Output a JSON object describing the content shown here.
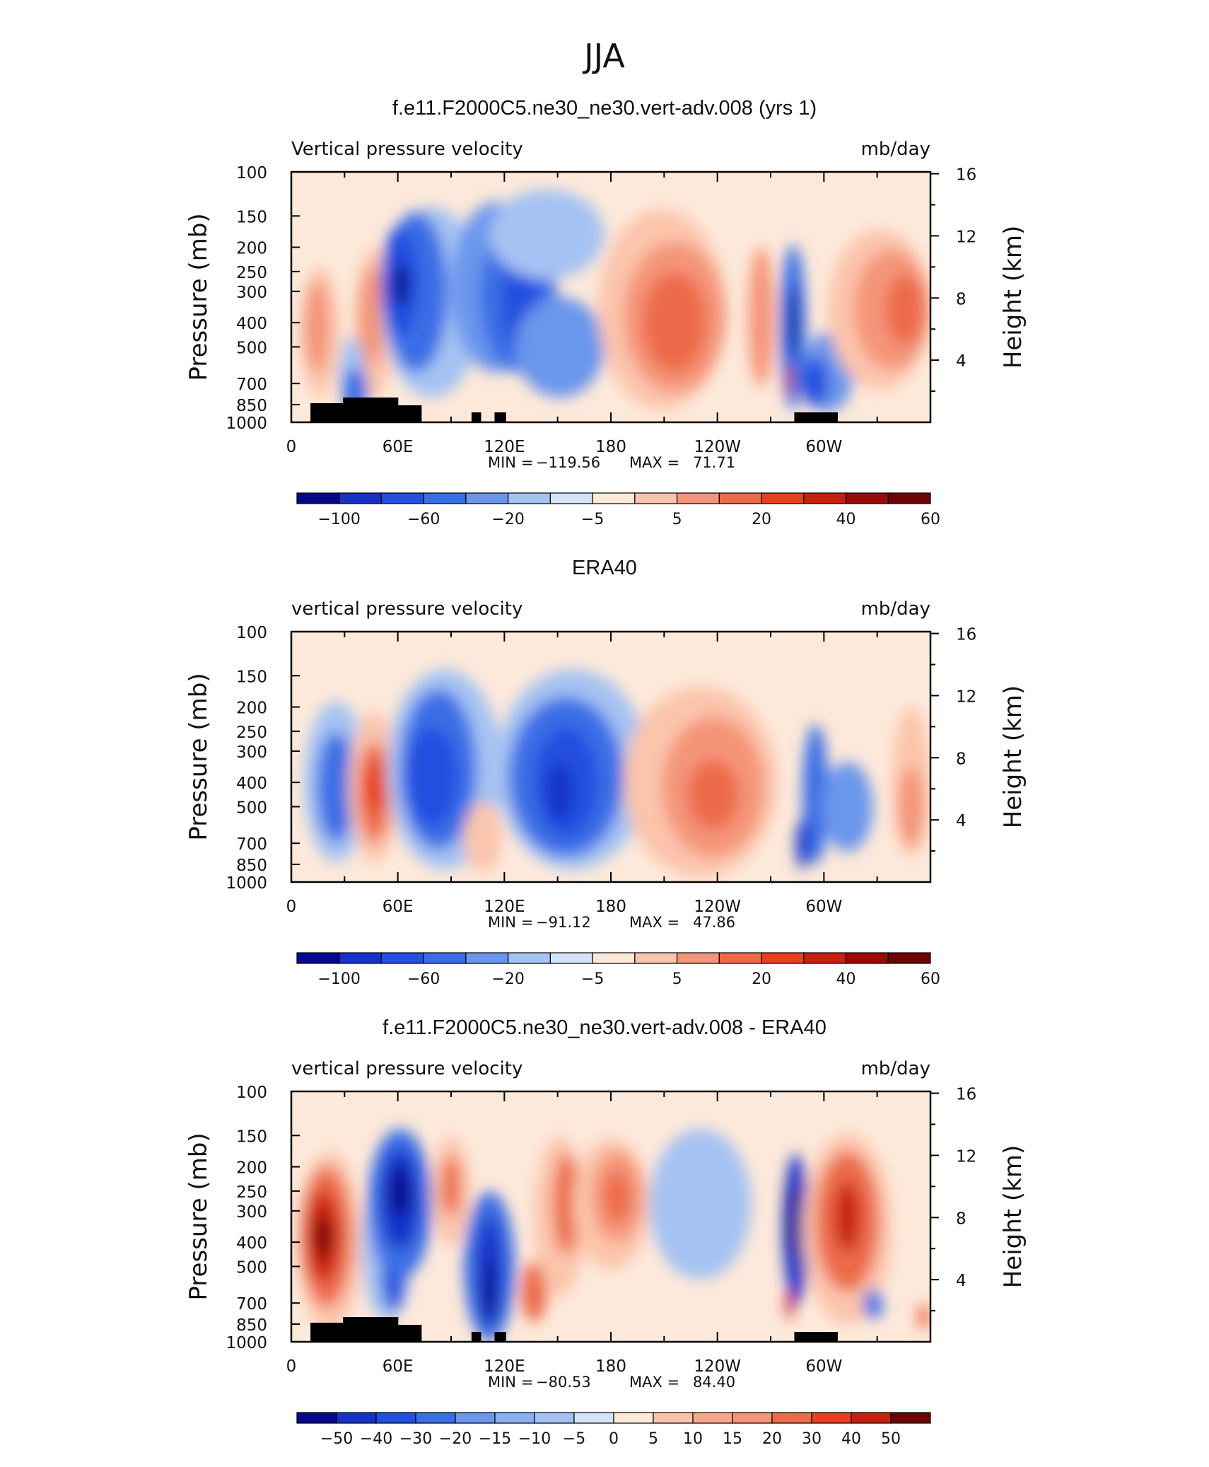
{
  "figure": {
    "title": "JJA"
  },
  "chart_data": [
    {
      "type": "heatmap",
      "title": "f.e11.F2000C5.ne30_ne30.vert-adv.008 (yrs 1)",
      "left_label": "Vertical pressure velocity",
      "right_label": "mb/day",
      "ylabel": "Pressure (mb)",
      "y2label": "Height (km)",
      "yticks": [
        100,
        150,
        200,
        250,
        300,
        400,
        500,
        700,
        850,
        1000
      ],
      "y2ticks": [
        16,
        12,
        8,
        4
      ],
      "xticks": [
        "0",
        "60E",
        "120E",
        "180",
        "120W",
        "60W"
      ],
      "stats": {
        "min_label": "MIN =",
        "min": "−119.56",
        "max_label": "MAX =",
        "max": "71.71"
      },
      "colorbar": {
        "levels": [
          "−100",
          "−60",
          "−20",
          "−5",
          "5",
          "20",
          "40",
          "60"
        ],
        "colors": [
          "#08088c",
          "#1632c8",
          "#2250e0",
          "#3a6ee6",
          "#6a96ec",
          "#a4c2f2",
          "#d4e4f8",
          "#fde9da",
          "#fbc4ac",
          "#f49478",
          "#ec6a4a",
          "#e8401e",
          "#c8200e",
          "#9c0a08",
          "#6e0404"
        ]
      }
    },
    {
      "type": "heatmap",
      "title": "ERA40",
      "left_label": "vertical pressure velocity",
      "right_label": "mb/day",
      "ylabel": "Pressure (mb)",
      "y2label": "Height (km)",
      "yticks": [
        100,
        150,
        200,
        250,
        300,
        400,
        500,
        700,
        850,
        1000
      ],
      "y2ticks": [
        16,
        12,
        8,
        4
      ],
      "xticks": [
        "0",
        "60E",
        "120E",
        "180",
        "120W",
        "60W"
      ],
      "stats": {
        "min_label": "MIN =",
        "min": "−91.12",
        "max_label": "MAX =",
        "max": "47.86"
      },
      "colorbar": {
        "levels": [
          "−100",
          "−60",
          "−20",
          "−5",
          "5",
          "20",
          "40",
          "60"
        ],
        "colors": [
          "#08088c",
          "#1632c8",
          "#2250e0",
          "#3a6ee6",
          "#6a96ec",
          "#a4c2f2",
          "#d4e4f8",
          "#fde9da",
          "#fbc4ac",
          "#f49478",
          "#ec6a4a",
          "#e8401e",
          "#c8200e",
          "#9c0a08",
          "#6e0404"
        ]
      }
    },
    {
      "type": "heatmap",
      "title": "f.e11.F2000C5.ne30_ne30.vert-adv.008 - ERA40",
      "left_label": "vertical pressure velocity",
      "right_label": "mb/day",
      "ylabel": "Pressure (mb)",
      "y2label": "Height (km)",
      "yticks": [
        100,
        150,
        200,
        250,
        300,
        400,
        500,
        700,
        850,
        1000
      ],
      "y2ticks": [
        16,
        12,
        8,
        4
      ],
      "xticks": [
        "0",
        "60E",
        "120E",
        "180",
        "120W",
        "60W"
      ],
      "stats": {
        "min_label": "MIN =",
        "min": "−80.53",
        "max_label": "MAX =",
        "max": "84.40"
      },
      "colorbar": {
        "levels": [
          "−50",
          "−40",
          "−30",
          "−20",
          "−15",
          "−10",
          "−5",
          "0",
          "5",
          "10",
          "15",
          "20",
          "30",
          "40",
          "50"
        ],
        "colors": [
          "#08088c",
          "#1632c8",
          "#2250e0",
          "#3a6ee6",
          "#6a96ec",
          "#8aaeee",
          "#a4c2f2",
          "#d4e4f8",
          "#fde9da",
          "#fbc4ac",
          "#f7a88c",
          "#f49478",
          "#ec6a4a",
          "#e8401e",
          "#c8200e",
          "#6e0404"
        ]
      }
    }
  ]
}
